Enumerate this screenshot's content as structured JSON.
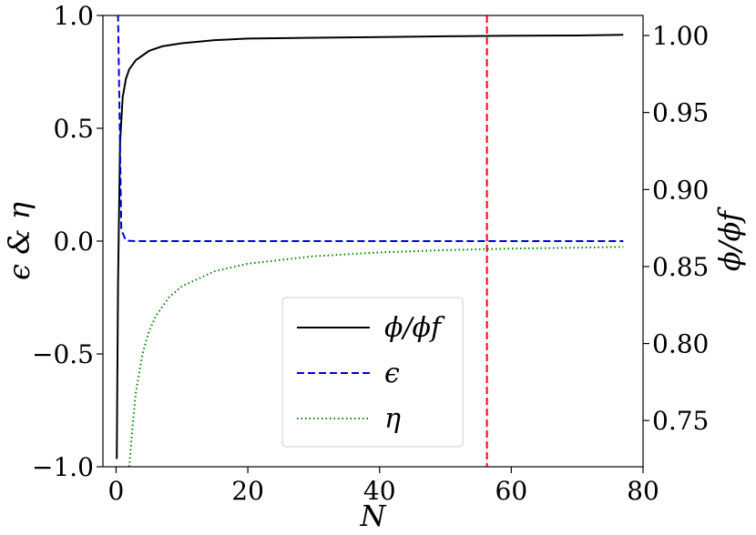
{
  "chart_data": {
    "type": "line",
    "xlabel": "N",
    "ylabel_left": "ϵ & η",
    "ylabel_right": "ϕ/ϕf",
    "xlim": [
      -2,
      80
    ],
    "ylim_left": [
      -1.0,
      1.0
    ],
    "ylim_right": [
      0.72,
      1.013
    ],
    "x_ticks": [
      0,
      20,
      40,
      60,
      80
    ],
    "x_tick_labels": [
      "0",
      "20",
      "40",
      "60",
      "80"
    ],
    "y_left_ticks": [
      -1.0,
      -0.5,
      0.0,
      0.5,
      1.0
    ],
    "y_left_tick_labels": [
      "−1.0",
      "−0.5",
      "0.0",
      "0.5",
      "1.0"
    ],
    "y_right_ticks": [
      0.75,
      0.8,
      0.85,
      0.9,
      0.95,
      1.0
    ],
    "y_right_tick_labels": [
      "0.75",
      "0.80",
      "0.85",
      "0.90",
      "0.95",
      "1.00"
    ],
    "grid": false,
    "legend_position": "lower-center",
    "vline": {
      "x": 56.3,
      "color": "#ff0000",
      "style": "dashed"
    },
    "series": [
      {
        "name": "ϕ/ϕf",
        "axis": "right",
        "color": "#000000",
        "style": "solid",
        "x": [
          0.1,
          0.3,
          0.6,
          1.0,
          1.5,
          2,
          3,
          4,
          5,
          7,
          10,
          15,
          20,
          30,
          40,
          50,
          60,
          70,
          77
        ],
        "y": [
          0.725,
          0.84,
          0.93,
          0.96,
          0.972,
          0.978,
          0.984,
          0.987,
          0.99,
          0.993,
          0.995,
          0.997,
          0.998,
          0.9985,
          0.999,
          0.9995,
          0.9998,
          1.0,
          1.0005
        ]
      },
      {
        "name": "ϵ",
        "axis": "left",
        "color": "#0000dd",
        "style": "dashed",
        "x": [
          0.1,
          0.3,
          0.5,
          0.8,
          1.5,
          3,
          10,
          30,
          60,
          77
        ],
        "y": [
          1.0,
          1.0,
          0.6,
          0.05,
          0.002,
          0.0,
          0.0,
          0.0,
          0.0,
          0.0
        ]
      },
      {
        "name": "η",
        "axis": "left",
        "color": "#008000",
        "style": "dotted",
        "x": [
          2,
          2.5,
          3,
          4,
          5,
          6,
          8,
          10,
          15,
          20,
          30,
          40,
          50,
          60,
          70,
          77
        ],
        "y": [
          -1.0,
          -0.82,
          -0.67,
          -0.5,
          -0.4,
          -0.333,
          -0.25,
          -0.2,
          -0.133,
          -0.1,
          -0.067,
          -0.05,
          -0.04,
          -0.033,
          -0.029,
          -0.026
        ]
      }
    ]
  }
}
